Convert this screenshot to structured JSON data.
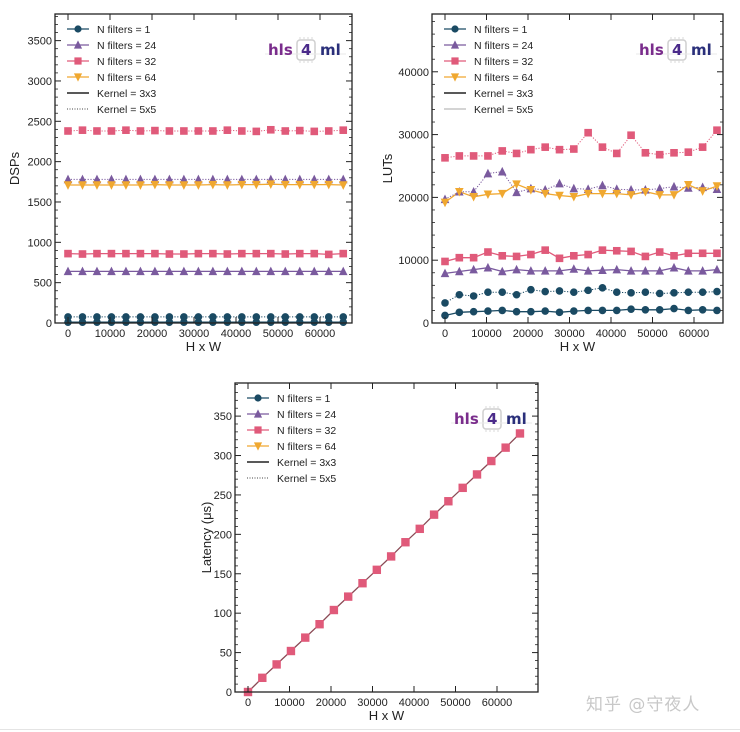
{
  "chart_data": [
    {
      "type": "line",
      "title": "",
      "xlabel": "H x W",
      "ylabel": "DSPs",
      "xlim": [
        -3100,
        67600
      ],
      "ylim": [
        0,
        3830
      ],
      "xticks": [
        0,
        10000,
        20000,
        30000,
        40000,
        50000,
        60000
      ],
      "yticks": [
        0,
        500,
        1000,
        1500,
        2000,
        2500,
        3000,
        3500
      ],
      "grid": false,
      "legend_position": "upper left",
      "logo": "hls 4 ml",
      "x": [
        0,
        3449,
        6898,
        10347,
        13796,
        17245,
        20694,
        24143,
        27592,
        31041,
        34490,
        37939,
        41388,
        44837,
        48286,
        51735,
        55184,
        58633,
        62082,
        65536
      ],
      "series": [
        {
          "name": "N filters = 1, Kernel = 3x3",
          "filters": 1,
          "kernel": "3x3",
          "marker": "circle",
          "color": "#1a4a63",
          "linestyle": "solid",
          "values": [
            10,
            10,
            10,
            10,
            10,
            10,
            10,
            10,
            10,
            10,
            10,
            10,
            10,
            10,
            10,
            10,
            10,
            10,
            10,
            10
          ]
        },
        {
          "name": "N filters = 1, Kernel = 5x5",
          "filters": 1,
          "kernel": "5x5",
          "marker": "circle",
          "color": "#1a4a63",
          "linestyle": "dotted",
          "values": [
            75,
            75,
            75,
            75,
            75,
            75,
            75,
            75,
            75,
            75,
            75,
            75,
            75,
            75,
            75,
            75,
            75,
            75,
            75,
            75
          ]
        },
        {
          "name": "N filters = 24, Kernel = 3x3",
          "filters": 24,
          "kernel": "3x3",
          "marker": "triangle-up",
          "color": "#7a5a9e",
          "linestyle": "solid",
          "values": [
            640,
            640,
            640,
            640,
            640,
            640,
            640,
            640,
            640,
            640,
            640,
            640,
            640,
            640,
            640,
            640,
            640,
            640,
            640,
            640
          ]
        },
        {
          "name": "N filters = 24, Kernel = 5x5",
          "filters": 24,
          "kernel": "5x5",
          "marker": "triangle-up",
          "color": "#7a5a9e",
          "linestyle": "dotted",
          "values": [
            1780,
            1780,
            1780,
            1780,
            1780,
            1780,
            1780,
            1780,
            1780,
            1780,
            1780,
            1780,
            1780,
            1780,
            1780,
            1780,
            1780,
            1780,
            1780,
            1780
          ]
        },
        {
          "name": "N filters = 32, Kernel = 3x3",
          "filters": 32,
          "kernel": "3x3",
          "marker": "square",
          "color": "#e05a7a",
          "linestyle": "solid",
          "values": [
            860,
            855,
            860,
            860,
            860,
            860,
            860,
            855,
            855,
            860,
            860,
            855,
            860,
            860,
            860,
            855,
            860,
            860,
            850,
            860
          ]
        },
        {
          "name": "N filters = 32, Kernel = 5x5",
          "filters": 32,
          "kernel": "5x5",
          "marker": "square",
          "color": "#e05a7a",
          "linestyle": "dotted",
          "values": [
            2380,
            2390,
            2380,
            2380,
            2390,
            2380,
            2385,
            2380,
            2380,
            2380,
            2380,
            2390,
            2380,
            2375,
            2395,
            2380,
            2385,
            2375,
            2380,
            2390
          ]
        },
        {
          "name": "N filters = 64, Kernel = 3x3",
          "filters": 64,
          "kernel": "3x3",
          "marker": "triangle-down",
          "color": "#f0a830",
          "linestyle": "solid",
          "values": [
            1710,
            1710,
            1710,
            1710,
            1710,
            1710,
            1715,
            1710,
            1710,
            1710,
            1715,
            1710,
            1715,
            1715,
            1720,
            1715,
            1715,
            1715,
            1715,
            1710
          ]
        }
      ],
      "legend": [
        "N filters = 1",
        "N filters = 24",
        "N filters = 32",
        "N filters = 64",
        "Kernel = 3x3",
        "Kernel = 5x5"
      ]
    },
    {
      "type": "line",
      "title": "",
      "xlabel": "H x W",
      "ylabel": "LUTs",
      "xlim": [
        -2100,
        44300
      ],
      "ylim": [
        0,
        49200
      ],
      "xticks": [
        0,
        10000,
        20000,
        30000,
        40000,
        50000,
        60000
      ],
      "yticks": [
        0,
        10000,
        20000,
        30000,
        40000
      ],
      "grid": false,
      "legend_position": "upper left",
      "logo": "hls 4 ml",
      "x": [
        0,
        3449,
        6898,
        10347,
        13796,
        17245,
        20694,
        24143,
        27592,
        31041,
        34490,
        37939,
        41388,
        44837,
        48286,
        51735,
        55184,
        58633,
        62082,
        65536
      ],
      "series": [
        {
          "name": "N filters = 1, Kernel = 3x3",
          "filters": 1,
          "kernel": "3x3",
          "marker": "circle",
          "color": "#1a4a63",
          "linestyle": "solid",
          "values": [
            1200,
            1700,
            1800,
            1900,
            2000,
            1800,
            1800,
            1900,
            1700,
            1900,
            2000,
            2000,
            2000,
            2200,
            2100,
            2100,
            2300,
            2000,
            2100,
            2000
          ]
        },
        {
          "name": "N filters = 1, Kernel = 5x5",
          "filters": 1,
          "kernel": "5x5",
          "marker": "circle",
          "color": "#1a4a63",
          "linestyle": "dotted",
          "values": [
            3200,
            4500,
            4300,
            4900,
            4900,
            4500,
            5300,
            5000,
            5100,
            4900,
            5200,
            5600,
            4900,
            4800,
            4900,
            4700,
            4800,
            4900,
            4900,
            5000
          ]
        },
        {
          "name": "N filters = 24, Kernel = 3x3",
          "filters": 24,
          "kernel": "3x3",
          "marker": "triangle-up",
          "color": "#7a5a9e",
          "linestyle": "solid",
          "values": [
            7900,
            8200,
            8500,
            8800,
            8200,
            8500,
            8300,
            8300,
            8300,
            8600,
            8300,
            8400,
            8500,
            8300,
            8300,
            8300,
            8800,
            8300,
            8300,
            8500
          ]
        },
        {
          "name": "N filters = 24, Kernel = 5x5",
          "filters": 24,
          "kernel": "5x5",
          "marker": "triangle-up",
          "color": "#7a5a9e",
          "linestyle": "dotted",
          "values": [
            19700,
            20900,
            20900,
            23800,
            24100,
            20800,
            21400,
            21200,
            22200,
            21400,
            21300,
            21900,
            21300,
            21200,
            21200,
            21400,
            21700,
            21500,
            21600,
            21300
          ]
        },
        {
          "name": "N filters = 32, Kernel = 3x3",
          "filters": 32,
          "kernel": "3x3",
          "marker": "square",
          "color": "#e05a7a",
          "linestyle": "solid",
          "values": [
            9800,
            10400,
            10400,
            11300,
            10700,
            10600,
            10900,
            11600,
            10300,
            10700,
            10900,
            11600,
            11500,
            11400,
            10600,
            11300,
            10700,
            11100,
            11100,
            11100
          ]
        },
        {
          "name": "N filters = 32, Kernel = 5x5",
          "filters": 32,
          "kernel": "5x5",
          "marker": "square",
          "color": "#e05a7a",
          "linestyle": "dotted",
          "values": [
            26300,
            26600,
            26600,
            26600,
            27400,
            27000,
            27600,
            28000,
            27600,
            27700,
            30300,
            28000,
            27000,
            29900,
            27100,
            26800,
            27100,
            27200,
            28000,
            30700
          ]
        },
        {
          "name": "N filters = 64, Kernel = 3x3",
          "filters": 64,
          "kernel": "3x3",
          "marker": "triangle-down",
          "color": "#f0a830",
          "linestyle": "solid",
          "values": [
            19200,
            20900,
            20100,
            20500,
            20600,
            22100,
            21200,
            20600,
            20300,
            20100,
            20600,
            20600,
            20600,
            20400,
            20900,
            20400,
            20400,
            22000,
            21000,
            21800
          ]
        }
      ],
      "legend": [
        "N filters = 1",
        "N filters = 24",
        "N filters = 32",
        "N filters = 64",
        "Kernel = 3x3",
        "Kernel = 5x5"
      ]
    },
    {
      "type": "line",
      "title": "",
      "xlabel": "H x W",
      "ylabel": "Latency (μs)",
      "xlim": [
        -3100,
        69800
      ],
      "ylim": [
        0,
        392
      ],
      "xticks": [
        0,
        10000,
        20000,
        30000,
        40000,
        50000,
        60000
      ],
      "yticks": [
        0,
        50,
        100,
        150,
        200,
        250,
        300,
        350
      ],
      "grid": false,
      "legend_position": "upper left",
      "logo": "hls 4 ml",
      "x": [
        0,
        3449,
        6898,
        10347,
        13796,
        17245,
        20694,
        24143,
        27592,
        31041,
        34490,
        37939,
        41388,
        44837,
        48286,
        51735,
        55184,
        58633,
        62082,
        65536
      ],
      "series": [
        {
          "name": "N filters = 32",
          "filters": 32,
          "kernel": "3x3/5x5 (overlapping)",
          "marker": "square",
          "color": "#e05a7a",
          "linestyle": "solid",
          "values": [
            0,
            18,
            35,
            52,
            69,
            86,
            104,
            121,
            138,
            155,
            172,
            190,
            207,
            225,
            242,
            259,
            276,
            293,
            310,
            328
          ]
        }
      ],
      "legend": [
        "N filters = 1",
        "N filters = 24",
        "N filters = 32",
        "N filters = 64",
        "Kernel = 3x3",
        "Kernel = 5x5"
      ]
    }
  ],
  "labels": {
    "xlabel": "H x W",
    "dsp_ylabel": "DSPs",
    "lut_ylabel": "LUTs",
    "lat_ylabel": "Latency (μs)",
    "legend": [
      "N filters = 1",
      "N filters = 24",
      "N filters = 32",
      "N filters = 64",
      "Kernel = 3x3",
      "Kernel = 5x5"
    ],
    "logo_hls": "hls",
    "logo_4": "4",
    "logo_ml": "ml",
    "watermark": "知乎 @守夜人"
  },
  "colors": {
    "nf1": "#1a4a63",
    "nf24": "#7a5a9e",
    "nf32": "#e05a7a",
    "nf64": "#f0a830",
    "axis": "#222222"
  }
}
